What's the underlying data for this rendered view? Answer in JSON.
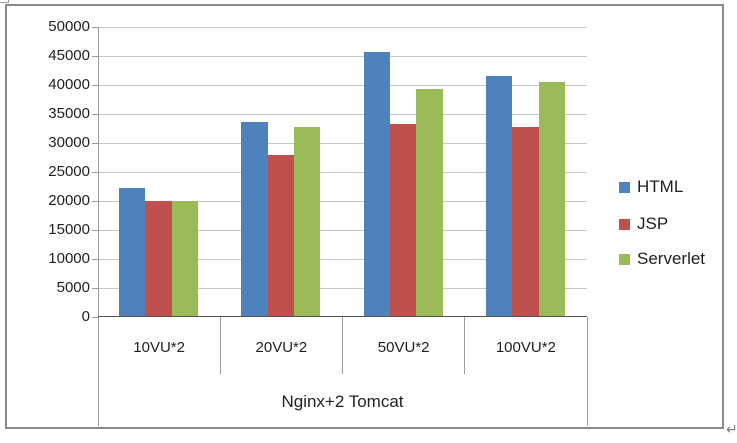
{
  "chart_data": {
    "type": "bar",
    "title": "",
    "group_label": "Nginx+2 Tomcat",
    "categories": [
      "10VU*2",
      "20VU*2",
      "50VU*2",
      "100VU*2"
    ],
    "series": [
      {
        "name": "HTML",
        "color": "#4F81BD",
        "values": [
          22200,
          33600,
          45700,
          41500
        ]
      },
      {
        "name": "JSP",
        "color": "#C0504D",
        "values": [
          20000,
          28000,
          33300,
          32700
        ]
      },
      {
        "name": "Serverlet",
        "color": "#9BBB59",
        "values": [
          20000,
          32700,
          39300,
          40500
        ]
      }
    ],
    "y_axis": {
      "min": 0,
      "max": 50000,
      "step": 5000,
      "tick_labels": [
        "0",
        "5000",
        "10000",
        "15000",
        "20000",
        "25000",
        "30000",
        "35000",
        "40000",
        "45000",
        "50000"
      ]
    },
    "xlabel": "",
    "ylabel": "",
    "grid": true,
    "legend_position": "right"
  },
  "decorations": {
    "return_mark": "↵"
  },
  "colors": {
    "gridline": "#c6c6c6",
    "axis": "#9c9c9c",
    "x_axis": "#555555",
    "frame_border": "#8a8a8a",
    "text": "#1f1f1f"
  }
}
